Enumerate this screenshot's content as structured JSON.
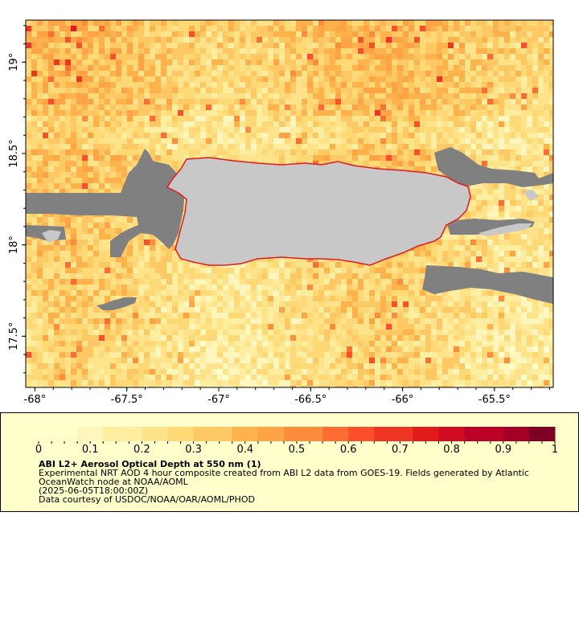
{
  "map": {
    "lon_range": [
      -68.05,
      -65.18
    ],
    "lat_range": [
      17.22,
      19.23
    ],
    "lon_ticks": [
      {
        "value": -68,
        "label": "-68°"
      },
      {
        "value": -67.5,
        "label": "-67.5°"
      },
      {
        "value": -67,
        "label": "-67°"
      },
      {
        "value": -66.5,
        "label": "-66.5°"
      },
      {
        "value": -66,
        "label": "-66°"
      },
      {
        "value": -65.5,
        "label": "-65.5°"
      }
    ],
    "lat_ticks": [
      {
        "value": 19,
        "label": "19°"
      },
      {
        "value": 18.5,
        "label": "18.5°"
      },
      {
        "value": 18,
        "label": "18°"
      },
      {
        "value": 17.5,
        "label": "17.5°"
      }
    ],
    "land_color": "#c8c8c8",
    "nodata_color": "#808080"
  },
  "legend": {
    "title": "ABI L2+ Aerosol Optical Depth at 550 nm (1)",
    "description": "Experimental NRT AOD 4 hour composite created from ABI L2 data from GOES-19. Fields generated by Atlantic OceanWatch node at NOAA/AOML",
    "date": "(2025-06-05T18:00:00Z)",
    "credit": "Data courtesy of USDOC/NOAA/OAR/AOML/PHOD",
    "colorbar_min": 0,
    "colorbar_max": 1,
    "colorbar_labels": [
      "0",
      "0.1",
      "0.2",
      "0.3",
      "0.4",
      "0.5",
      "0.6",
      "0.7",
      "0.8",
      "0.9",
      "1"
    ],
    "colors": [
      "#ffffcc",
      "#fff6bd",
      "#ffeda0",
      "#fee38a",
      "#fed976",
      "#fec865",
      "#feb24c",
      "#fea346",
      "#fd8d3c",
      "#fc6c33",
      "#fc4e2a",
      "#ee3423",
      "#e31a1c",
      "#cf0c21",
      "#bd0026",
      "#a30026",
      "#800026"
    ]
  }
}
